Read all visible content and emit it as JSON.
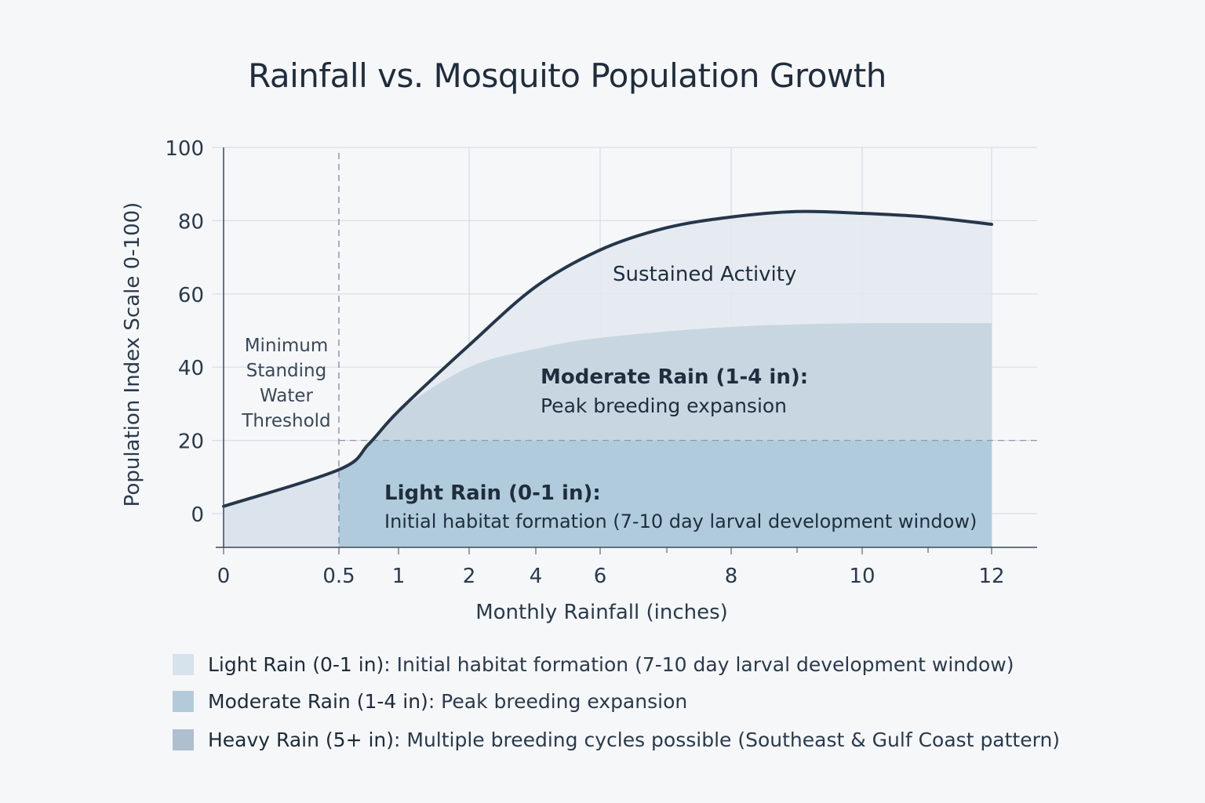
{
  "chart_data": {
    "type": "area",
    "title": "Rainfall vs. Mosquito Population Growth",
    "xlabel": "Monthly Rainfall (inches)",
    "ylabel": "Population Index Scale 0-100)",
    "x_ticks": [
      "0",
      "0.5",
      "1",
      "2",
      "4",
      "6",
      "8",
      "10",
      "12"
    ],
    "y_ticks": [
      "0",
      "20",
      "40",
      "60",
      "80",
      "100"
    ],
    "ylim": [
      -9,
      100
    ],
    "xscale": "non-linear (custom tick spacing)",
    "grid": true,
    "series": [
      {
        "name": "Sustained Activity",
        "x": [
          0,
          0.5,
          0.75,
          1,
          2,
          4,
          6,
          7,
          8,
          9,
          10,
          11,
          12
        ],
        "y": [
          2,
          12,
          19,
          28,
          46,
          62,
          72,
          78,
          81,
          82.5,
          82,
          81,
          79
        ]
      },
      {
        "name": "Moderate Rain (1-4 in)",
        "x": [
          1,
          2,
          4,
          6,
          8,
          10,
          12
        ],
        "y": [
          28,
          40,
          45,
          48,
          51,
          52,
          52
        ]
      },
      {
        "name": "Light Rain (0-1 in)",
        "x": [
          0.5,
          12
        ],
        "y": [
          20,
          20
        ]
      }
    ],
    "threshold": {
      "x": 0.5,
      "y": 20,
      "label": [
        "Minimum",
        "Standing",
        "Water",
        "Threshold"
      ]
    },
    "annotations": {
      "sustained": "Sustained Activity",
      "moderate_title": "Moderate Rain (1-4 in):",
      "moderate_text": "Peak breeding expansion",
      "light_title": "Light Rain (0-1 in):",
      "light_text": "Initial habitat formation (7-10 day larval development window)"
    },
    "colors": {
      "curve": "#26364a",
      "sustained_fill": "#e3e9f0",
      "moderate_fill": "#c8d6e2",
      "light_fill": "#b0ccdc",
      "left_fill": "#dbe3ec",
      "grid": "#d5dde6"
    },
    "legend": [
      {
        "bold": "Light Rain (0-1 in)",
        "text": ": Initial habitat formation (7-10 day larval development window)",
        "color": "#d6e2ec"
      },
      {
        "bold": "Moderate Rain (1-4 in)",
        "text": ": Peak breeding expansion",
        "color": "#b3cad9"
      },
      {
        "bold": "Heavy Rain (5+ in)",
        "text": ": Multiple breeding cycles possible (Southeast & Gulf Coast pattern)",
        "color": "#aebfcf"
      }
    ]
  }
}
